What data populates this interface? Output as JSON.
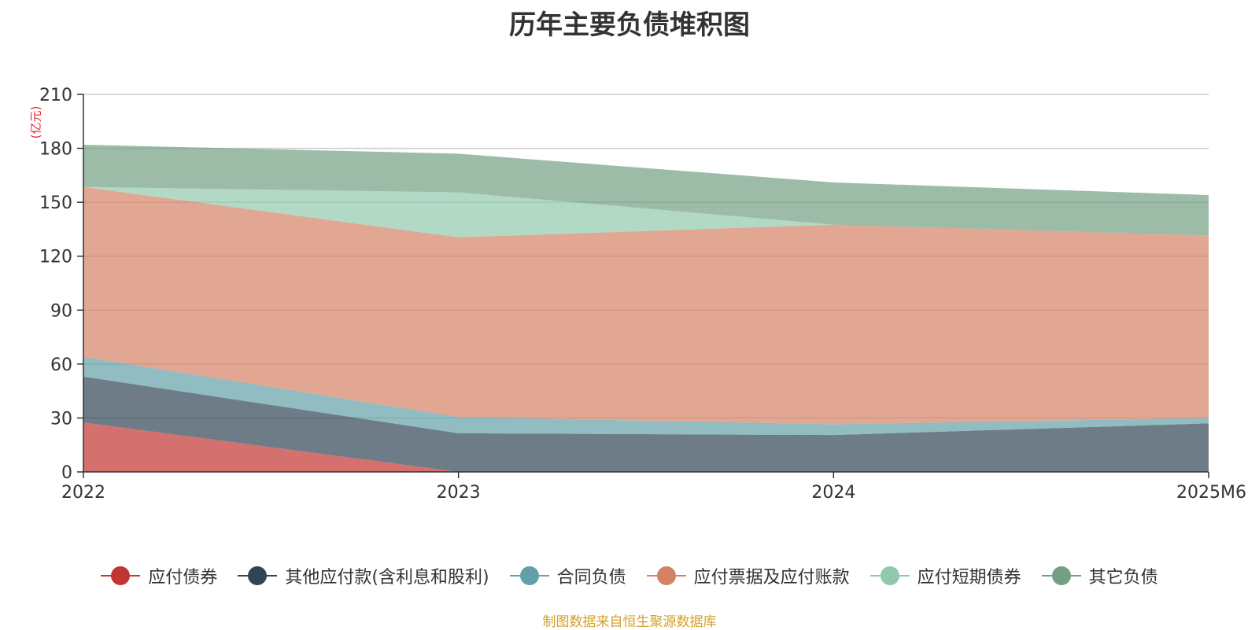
{
  "chart_data": {
    "type": "area",
    "stacked": true,
    "title": "历年主要负债堆积图",
    "y_unit": "(亿元)",
    "categories": [
      "2022",
      "2023",
      "2024",
      "2025M6"
    ],
    "ylim": [
      0,
      210
    ],
    "yticks": [
      0,
      30,
      60,
      90,
      120,
      150,
      180,
      210
    ],
    "grid": true,
    "legend_position": "bottom",
    "series": [
      {
        "name": "应付债券",
        "values": [
          27.5,
          0,
          0,
          0
        ],
        "color": "#c23531"
      },
      {
        "name": "其他应付款(含利息和股利)",
        "values": [
          25.5,
          21.5,
          20.5,
          27
        ],
        "color": "#2f4554"
      },
      {
        "name": "合同负债",
        "values": [
          11,
          9,
          6,
          3
        ],
        "color": "#61a0a8"
      },
      {
        "name": "应付票据及应付账款",
        "values": [
          94.5,
          100,
          111,
          101.5
        ],
        "color": "#d48265"
      },
      {
        "name": "应付短期债券",
        "values": [
          0,
          25,
          0,
          0
        ],
        "color": "#91c7ae"
      },
      {
        "name": "其它负债",
        "values": [
          23.5,
          21.5,
          23.5,
          22.5
        ],
        "color": "#749f83"
      }
    ],
    "source_note": "制图数据来自恒生聚源数据库"
  }
}
